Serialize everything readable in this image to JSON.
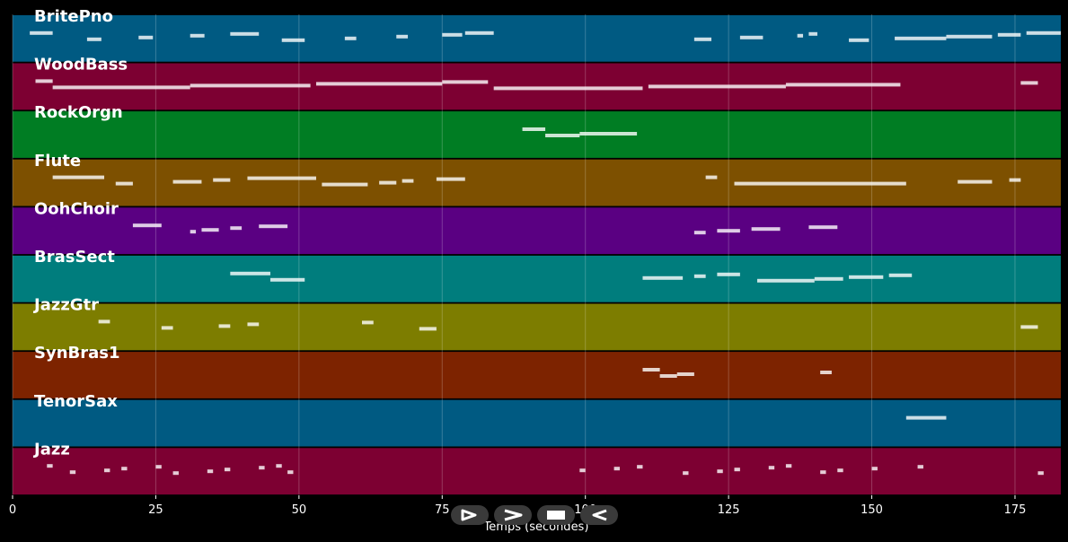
{
  "chart_data": {
    "type": "piano-roll",
    "xlabel": "Temps (secondes)",
    "xlim": [
      0,
      183
    ],
    "xticks": [
      0,
      25,
      50,
      75,
      100,
      125,
      150,
      175
    ],
    "grid": true,
    "tracks": [
      {
        "name": "BritePno",
        "color": "#005a82",
        "segments": [
          [
            3,
            7
          ],
          [
            13,
            15.5
          ],
          [
            22,
            24.5
          ],
          [
            31,
            33.5
          ],
          [
            38,
            43
          ],
          [
            47,
            51
          ],
          [
            58,
            60
          ],
          [
            67,
            69
          ],
          [
            75,
            78.5
          ],
          [
            79,
            84
          ],
          [
            119,
            122
          ],
          [
            127,
            131
          ],
          [
            137,
            138
          ],
          [
            139,
            140.5
          ],
          [
            146,
            149.5
          ],
          [
            154,
            163
          ],
          [
            163,
            171
          ],
          [
            172,
            176
          ],
          [
            177,
            183
          ]
        ]
      },
      {
        "name": "WoodBass",
        "color": "#7d0032",
        "segments": [
          [
            4,
            7
          ],
          [
            7,
            31
          ],
          [
            31,
            52
          ],
          [
            53,
            75
          ],
          [
            75,
            83
          ],
          [
            84,
            110
          ],
          [
            111,
            135
          ],
          [
            135,
            155
          ],
          [
            176,
            179
          ]
        ]
      },
      {
        "name": "RockOrgn",
        "color": "#007d23",
        "segments": [
          [
            89,
            93
          ],
          [
            93,
            99
          ],
          [
            99,
            109
          ]
        ]
      },
      {
        "name": "Flute",
        "color": "#7d5000",
        "segments": [
          [
            7,
            16
          ],
          [
            18,
            21
          ],
          [
            28,
            33
          ],
          [
            35,
            38
          ],
          [
            41,
            53
          ],
          [
            54,
            62
          ],
          [
            64,
            67
          ],
          [
            68,
            70
          ],
          [
            74,
            79
          ],
          [
            121,
            123
          ],
          [
            126,
            156
          ],
          [
            165,
            171
          ],
          [
            174,
            176
          ]
        ]
      },
      {
        "name": "OohChoir",
        "color": "#5a0082",
        "segments": [
          [
            21,
            26
          ],
          [
            31,
            32
          ],
          [
            33,
            36
          ],
          [
            38,
            40
          ],
          [
            43,
            48
          ],
          [
            119,
            121
          ],
          [
            123,
            127
          ],
          [
            129,
            134
          ],
          [
            139,
            144
          ]
        ]
      },
      {
        "name": "BrasSect",
        "color": "#007d7d",
        "segments": [
          [
            38,
            45
          ],
          [
            45,
            51
          ],
          [
            110,
            117
          ],
          [
            119,
            121
          ],
          [
            123,
            127
          ],
          [
            130,
            140
          ],
          [
            140,
            145
          ],
          [
            146,
            152
          ],
          [
            153,
            157
          ]
        ]
      },
      {
        "name": "JazzGtr",
        "color": "#7d7d00",
        "segments": [
          [
            15,
            17
          ],
          [
            26,
            28
          ],
          [
            36,
            38
          ],
          [
            41,
            43
          ],
          [
            61,
            63
          ],
          [
            71,
            74
          ],
          [
            176,
            179
          ]
        ]
      },
      {
        "name": "SynBras1",
        "color": "#7d2300",
        "segments": [
          [
            110,
            113
          ],
          [
            113,
            116
          ],
          [
            116,
            119
          ],
          [
            141,
            143
          ]
        ]
      },
      {
        "name": "TenorSax",
        "color": "#005a82",
        "segments": [
          [
            156,
            163
          ]
        ]
      },
      {
        "name": "Jazz",
        "color": "#7d0032",
        "segments": [
          [
            6,
            7
          ],
          [
            10,
            11
          ],
          [
            16,
            17
          ],
          [
            19,
            20
          ],
          [
            25,
            26
          ],
          [
            28,
            29
          ],
          [
            34,
            35
          ],
          [
            37,
            38
          ],
          [
            43,
            44
          ],
          [
            46,
            47
          ],
          [
            48,
            49
          ],
          [
            99,
            100
          ],
          [
            105,
            106
          ],
          [
            109,
            110
          ],
          [
            117,
            118
          ],
          [
            123,
            124
          ],
          [
            126,
            127
          ],
          [
            132,
            133
          ],
          [
            135,
            136
          ],
          [
            141,
            142
          ],
          [
            144,
            145
          ],
          [
            150,
            151
          ],
          [
            158,
            159
          ],
          [
            179,
            180
          ]
        ]
      }
    ]
  },
  "controls": {
    "play_label": "play",
    "forward_label": "forward",
    "stop_label": "stop",
    "rewind_label": "rewind"
  }
}
